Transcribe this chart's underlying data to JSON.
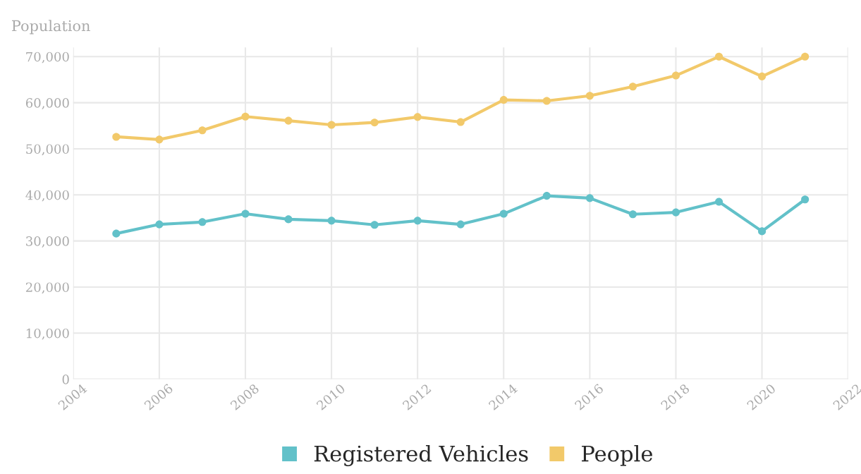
{
  "chart_data": {
    "type": "line",
    "ylabel": "Population",
    "x": [
      2005,
      2006,
      2007,
      2008,
      2009,
      2010,
      2011,
      2012,
      2013,
      2014,
      2015,
      2016,
      2017,
      2018,
      2019,
      2020,
      2021
    ],
    "series": [
      {
        "name": "Registered Vehicles",
        "color": "#62c1c9",
        "values": [
          31600,
          33600,
          34100,
          35900,
          34700,
          34400,
          33500,
          34400,
          33600,
          35900,
          39800,
          39300,
          35800,
          36200,
          38500,
          32100,
          39000
        ]
      },
      {
        "name": "People",
        "color": "#f2c96a",
        "values": [
          52600,
          52000,
          54000,
          57000,
          56100,
          55200,
          55700,
          56900,
          55800,
          60600,
          60400,
          61500,
          63500,
          65900,
          70000,
          65700,
          70000
        ]
      }
    ],
    "xlim": [
      2004,
      2022
    ],
    "xticks": [
      2004,
      2006,
      2008,
      2010,
      2012,
      2014,
      2016,
      2018,
      2020,
      2022
    ],
    "ylim": [
      0,
      72000
    ],
    "yticks": [
      {
        "value": 0,
        "label": "0"
      },
      {
        "value": 10000,
        "label": "10,000"
      },
      {
        "value": 20000,
        "label": "20,000"
      },
      {
        "value": 30000,
        "label": "30,000"
      },
      {
        "value": 40000,
        "label": "40,000"
      },
      {
        "value": 50000,
        "label": "50,000"
      },
      {
        "value": 60000,
        "label": "60,000"
      },
      {
        "value": 70000,
        "label": "70,000"
      }
    ],
    "grid": true,
    "legend": "bottom",
    "marker": "circle",
    "line_style": "solid"
  }
}
